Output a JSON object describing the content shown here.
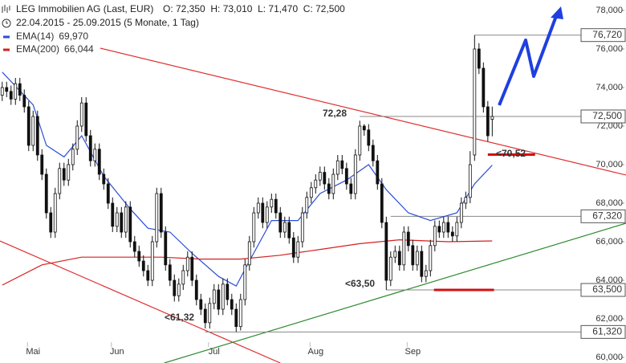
{
  "header": {
    "title": "LEG Immobilien AG (Last, EUR)",
    "ohlc": "O: 72,350  H: 73,010  L: 71,470  C: 72,500",
    "range": "22.04.2015 - 25.09.2015 (5 Monate, 1 Tag)"
  },
  "chart_data": {
    "type": "candlestick",
    "open": [
      73.6,
      74.0,
      73.8,
      73.4,
      74.2,
      73.6,
      73.0,
      71.0,
      72.5,
      70.5,
      69.5,
      67.5,
      66.5,
      68.5,
      69.8,
      69.2,
      70.0,
      70.8,
      72.0,
      73.2,
      71.5,
      70.2,
      70.8,
      69.5,
      69.0,
      68.0,
      66.8,
      67.5,
      66.5,
      67.8,
      66.0,
      65.5,
      65.0,
      64.5,
      64.0,
      66.0,
      68.5,
      66.5,
      64.8,
      64.0,
      63.2,
      63.8,
      64.5,
      65.2,
      64.0,
      63.0,
      62.5,
      61.8,
      62.8,
      63.5,
      62.5,
      63.8,
      63.0,
      62.5,
      61.6,
      63.0,
      64.8,
      66.0,
      67.5,
      68.0,
      67.0,
      67.8,
      68.2,
      67.5,
      66.5,
      67.0,
      66.2,
      65.2,
      66.0,
      67.5,
      68.3,
      68.8,
      69.2,
      69.6,
      69.0,
      68.5,
      69.5,
      70.2,
      69.8,
      69.0,
      68.5,
      70.5,
      72.0,
      71.8,
      71.0,
      70.2,
      69.0,
      67.0,
      64.0,
      65.2,
      65.5,
      64.8,
      66.5,
      65.8,
      64.8,
      65.5,
      64.2,
      64.5,
      65.8,
      66.8,
      66.5,
      67.0,
      66.5,
      66.3,
      67.0,
      68.0,
      68.3,
      70.5,
      76.0,
      75.0,
      73.0,
      72.35
    ],
    "high": [
      74.3,
      74.3,
      74.1,
      74.5,
      74.5,
      73.9,
      73.3,
      72.8,
      72.8,
      70.8,
      69.8,
      67.8,
      68.8,
      70.1,
      70.1,
      70.3,
      71.1,
      72.3,
      73.5,
      73.5,
      71.8,
      71.1,
      71.1,
      69.8,
      69.3,
      68.3,
      67.8,
      67.8,
      68.1,
      68.1,
      66.3,
      65.8,
      65.3,
      64.8,
      66.3,
      68.8,
      68.8,
      66.8,
      65.1,
      64.3,
      64.1,
      64.8,
      65.5,
      65.5,
      64.3,
      63.3,
      62.8,
      63.1,
      63.8,
      63.8,
      64.1,
      64.1,
      63.3,
      62.8,
      63.3,
      65.1,
      66.3,
      67.8,
      68.3,
      68.3,
      68.1,
      68.5,
      68.5,
      67.8,
      67.3,
      67.3,
      66.5,
      66.3,
      67.8,
      68.6,
      69.1,
      69.5,
      69.9,
      69.9,
      69.3,
      69.8,
      70.5,
      70.5,
      70.1,
      69.3,
      70.8,
      72.28,
      72.1,
      72.1,
      71.3,
      70.5,
      69.3,
      67.3,
      65.5,
      65.8,
      65.8,
      66.8,
      66.8,
      66.1,
      65.8,
      65.8,
      64.8,
      66.1,
      67.1,
      67.1,
      67.3,
      67.3,
      66.8,
      67.3,
      68.3,
      68.6,
      70.7,
      76.72,
      76.3,
      75.3,
      73.3,
      73.01
    ],
    "low": [
      73.3,
      73.5,
      73.1,
      73.1,
      73.3,
      72.7,
      70.7,
      70.7,
      70.2,
      69.2,
      67.2,
      66.2,
      66.2,
      68.2,
      68.9,
      68.9,
      69.7,
      70.5,
      71.7,
      71.2,
      69.9,
      69.9,
      69.2,
      68.7,
      67.7,
      66.5,
      66.5,
      66.2,
      66.2,
      65.7,
      65.2,
      64.7,
      64.2,
      63.7,
      63.7,
      65.7,
      66.2,
      64.5,
      63.7,
      62.9,
      62.9,
      63.5,
      64.2,
      63.7,
      62.7,
      62.2,
      61.5,
      61.5,
      62.5,
      62.2,
      62.2,
      62.7,
      62.2,
      61.32,
      61.4,
      62.7,
      64.5,
      65.7,
      67.2,
      66.7,
      66.7,
      67.5,
      67.2,
      66.2,
      66.2,
      65.9,
      64.9,
      64.9,
      65.7,
      67.2,
      68.0,
      68.5,
      68.9,
      68.7,
      68.2,
      68.2,
      69.2,
      69.5,
      68.7,
      68.2,
      68.2,
      70.2,
      71.5,
      70.7,
      69.9,
      68.7,
      66.7,
      63.5,
      63.7,
      64.9,
      64.5,
      64.5,
      65.5,
      64.5,
      64.5,
      63.9,
      63.9,
      64.2,
      65.5,
      66.2,
      66.2,
      66.2,
      66.0,
      66.0,
      66.7,
      67.7,
      68.0,
      70.2,
      74.7,
      72.7,
      71.2,
      71.47
    ],
    "close": [
      74.0,
      73.8,
      73.4,
      74.2,
      73.6,
      73.0,
      71.0,
      72.5,
      70.5,
      69.5,
      67.5,
      66.5,
      68.5,
      69.8,
      69.2,
      70.0,
      70.8,
      72.0,
      73.2,
      71.5,
      70.2,
      70.8,
      69.5,
      69.0,
      68.0,
      66.8,
      67.5,
      66.5,
      67.8,
      66.0,
      65.5,
      65.0,
      64.5,
      64.0,
      66.0,
      68.5,
      66.5,
      64.8,
      64.0,
      63.2,
      63.8,
      64.5,
      65.2,
      64.0,
      63.0,
      62.5,
      61.8,
      62.8,
      63.5,
      62.5,
      63.8,
      63.0,
      62.5,
      61.6,
      63.0,
      64.8,
      66.0,
      67.5,
      68.0,
      67.0,
      67.8,
      68.2,
      67.5,
      66.5,
      67.0,
      66.2,
      65.2,
      66.0,
      67.5,
      68.3,
      68.8,
      69.2,
      69.6,
      69.0,
      68.5,
      69.5,
      70.2,
      69.8,
      69.0,
      68.5,
      70.5,
      72.0,
      71.8,
      71.0,
      70.2,
      69.0,
      67.0,
      64.0,
      65.2,
      65.5,
      64.8,
      66.5,
      65.8,
      64.8,
      65.5,
      64.2,
      64.5,
      65.8,
      66.8,
      66.5,
      67.0,
      66.5,
      66.3,
      67.0,
      68.0,
      68.3,
      70.0,
      76.0,
      75.0,
      73.0,
      71.5,
      72.5
    ],
    "up_color": "#ffffff",
    "down_color": "#111111",
    "xlim": [
      -0.5,
      141.3
    ],
    "xticks": [
      {
        "value": 7,
        "label": "Mai"
      },
      {
        "value": 26,
        "label": "Jun"
      },
      {
        "value": 48,
        "label": "Jul"
      },
      {
        "value": 71,
        "label": "Aug"
      },
      {
        "value": 93,
        "label": "Sep"
      }
    ],
    "ylim": [
      59.71,
      78.54
    ],
    "yticks": [
      {
        "value": 60,
        "label": "60,000"
      },
      {
        "value": 62,
        "label": "62,000"
      },
      {
        "value": 64,
        "label": "64,000"
      },
      {
        "value": 66,
        "label": "66,000"
      },
      {
        "value": 68,
        "label": "68,000"
      },
      {
        "value": 70,
        "label": "70,000"
      },
      {
        "value": 72,
        "label": "72,000"
      },
      {
        "value": 74,
        "label": "74,000"
      },
      {
        "value": 76,
        "label": "76,000"
      },
      {
        "value": 78,
        "label": "78,000"
      }
    ],
    "series": [
      {
        "name": "EMA(14)",
        "color": "#2a4fd6",
        "value_label": "69,970",
        "x": [
          0,
          7,
          10,
          14,
          18,
          23,
          29,
          33,
          38,
          43,
          49,
          53,
          56,
          61,
          67,
          72,
          78,
          83,
          87,
          92,
          97,
          103,
          107,
          111
        ],
        "values": [
          74.8,
          73.1,
          71.0,
          70.4,
          71.5,
          69.4,
          67.7,
          66.7,
          66.5,
          65.4,
          64.2,
          63.7,
          65.0,
          67.1,
          67.1,
          68.5,
          69.2,
          70.0,
          68.7,
          67.5,
          67.1,
          67.5,
          69.0,
          69.97
        ]
      },
      {
        "name": "EMA(200)",
        "color": "#d42020",
        "value_label": "66,044",
        "x": [
          0,
          9,
          18,
          27,
          36,
          45,
          54,
          63,
          72,
          81,
          90,
          101,
          111
        ],
        "values": [
          63.75,
          64.8,
          65.2,
          65.2,
          65.2,
          65.1,
          65.1,
          65.3,
          65.6,
          65.9,
          66.1,
          66.0,
          66.044
        ]
      }
    ],
    "trendlines": [
      {
        "color": "#e03030",
        "x": [
          22.2,
          141.3
        ],
        "values": [
          76.04,
          69.46
        ]
      },
      {
        "color": "#e03030",
        "x": [
          -0.5,
          63
        ],
        "values": [
          66.04,
          59.71
        ]
      },
      {
        "color": "#2e8b2e",
        "x": [
          36.7,
          141.3
        ],
        "values": [
          59.71,
          66.96
        ]
      }
    ],
    "levels": [
      {
        "value": 76.72,
        "label": "76,720",
        "from": 107
      },
      {
        "value": 72.5,
        "label": "72,500",
        "from": 81
      },
      {
        "value": 67.32,
        "label": "67,320",
        "from": 88
      },
      {
        "value": 63.5,
        "label": "63,500",
        "from": 87
      },
      {
        "value": 61.32,
        "label": "61,320",
        "from": 46
      }
    ],
    "support_bars": [
      {
        "value": 70.52,
        "x": [
          110,
          120.7
        ]
      },
      {
        "value": 63.5,
        "x": [
          97.8,
          111.4
        ]
      }
    ],
    "annotations": [
      {
        "text": "72,28",
        "color": "#808080"
      },
      {
        "text": "<70,52",
        "color": "#d01010"
      },
      {
        "text": "<63,50",
        "color": "#d01010"
      },
      {
        "text": "<61,32",
        "color": "#d01010"
      }
    ]
  }
}
